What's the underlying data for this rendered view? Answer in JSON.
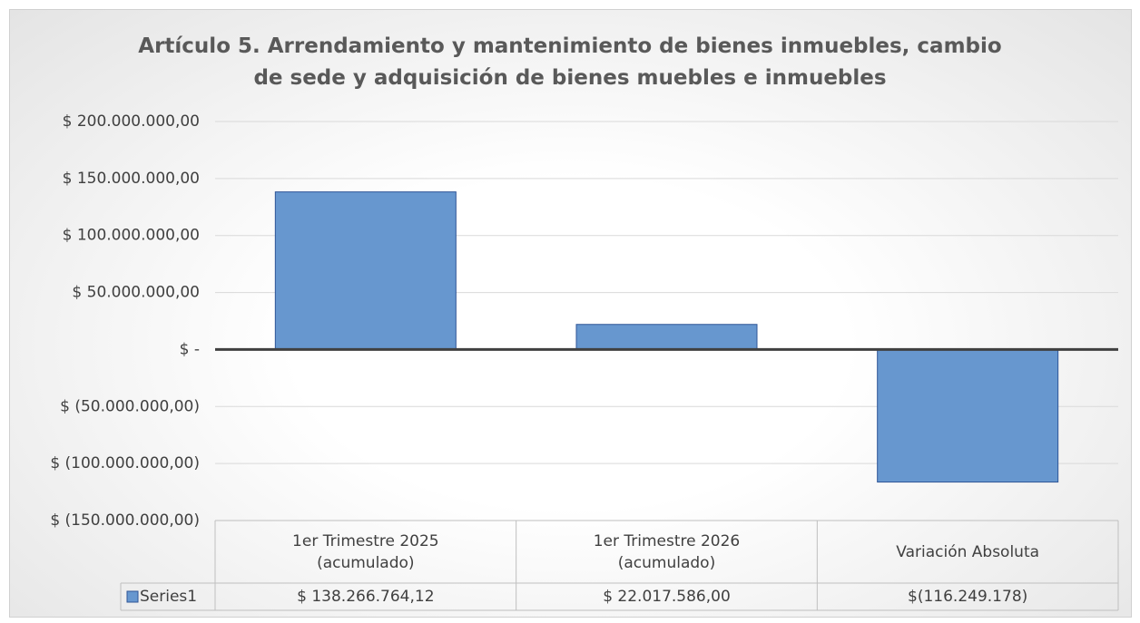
{
  "chart_data": {
    "type": "bar",
    "title": "Artículo 5.  Arrendamiento y mantenimiento de bienes inmuebles, cambio de sede y adquisición de bienes muebles e inmuebles",
    "categories": [
      "1er  Trimestre 2025 (acumulado)",
      "1er  Trimestre 2026 (acumulado)",
      "Variación Absoluta"
    ],
    "series": [
      {
        "name": "Series1",
        "color": "#6797cf",
        "values": [
          138266764.12,
          22017586.0,
          -116249178
        ],
        "value_labels": [
          "$ 138.266.764,12",
          "$ 22.017.586,00",
          "$(116.249.178)"
        ]
      }
    ],
    "ylim": [
      -150000000,
      200000000
    ],
    "yticks": [
      {
        "value": -150000000,
        "label": "$ (150.000.000,00)"
      },
      {
        "value": -100000000,
        "label": "$ (100.000.000,00)"
      },
      {
        "value": -50000000,
        "label": "$ (50.000.000,00)"
      },
      {
        "value": 0,
        "label": "$ -"
      },
      {
        "value": 50000000,
        "label": "$ 50.000.000,00"
      },
      {
        "value": 100000000,
        "label": "$ 100.000.000,00"
      },
      {
        "value": 150000000,
        "label": "$ 150.000.000,00"
      },
      {
        "value": 200000000,
        "label": "$ 200.000.000,00"
      }
    ],
    "grid": true
  }
}
